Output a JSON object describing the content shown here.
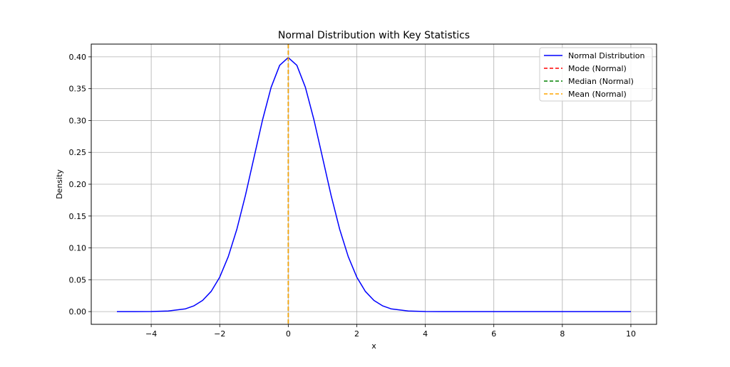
{
  "chart_data": {
    "type": "line",
    "title": "Normal Distribution with Key Statistics",
    "xlabel": "x",
    "ylabel": "Density",
    "xlim": [
      -5.75,
      10.75
    ],
    "ylim": [
      -0.02,
      0.42
    ],
    "xticks": [
      -4,
      -2,
      0,
      2,
      4,
      6,
      8,
      10
    ],
    "yticks": [
      0.0,
      0.05,
      0.1,
      0.15,
      0.2,
      0.25,
      0.3,
      0.35,
      0.4
    ],
    "xtick_labels": [
      "−4",
      "−2",
      "0",
      "2",
      "4",
      "6",
      "8",
      "10"
    ],
    "ytick_labels": [
      "0.00",
      "0.05",
      "0.10",
      "0.15",
      "0.20",
      "0.25",
      "0.30",
      "0.35",
      "0.40"
    ],
    "grid": true,
    "legend_position": "top-right",
    "series": [
      {
        "name": "Normal Distribution",
        "style": "solid",
        "color": "#0000ff",
        "x": [
          -5,
          -4.5,
          -4,
          -3.5,
          -3,
          -2.75,
          -2.5,
          -2.25,
          -2,
          -1.75,
          -1.5,
          -1.25,
          -1,
          -0.75,
          -0.5,
          -0.25,
          0,
          0.25,
          0.5,
          0.75,
          1,
          1.25,
          1.5,
          1.75,
          2,
          2.25,
          2.5,
          2.75,
          3,
          3.5,
          4,
          4.5,
          5,
          6,
          7,
          8,
          9,
          10
        ],
        "y": [
          0.0,
          0.0,
          0.0001,
          0.0009,
          0.0044,
          0.0091,
          0.0175,
          0.0317,
          0.054,
          0.0863,
          0.1295,
          0.1826,
          0.242,
          0.3011,
          0.3521,
          0.3867,
          0.3989,
          0.3867,
          0.3521,
          0.3011,
          0.242,
          0.1826,
          0.1295,
          0.0863,
          0.054,
          0.0317,
          0.0175,
          0.0091,
          0.0044,
          0.0009,
          0.0001,
          0.0,
          0.0,
          0.0,
          0.0,
          0.0,
          0.0,
          0.0
        ]
      },
      {
        "name": "Mode (Normal)",
        "style": "dashed",
        "color": "#ff0000",
        "vline_x": 0
      },
      {
        "name": "Median (Normal)",
        "style": "dashed",
        "color": "#008000",
        "vline_x": 0
      },
      {
        "name": "Mean (Normal)",
        "style": "dashed",
        "color": "#ffa500",
        "vline_x": 0
      }
    ]
  }
}
